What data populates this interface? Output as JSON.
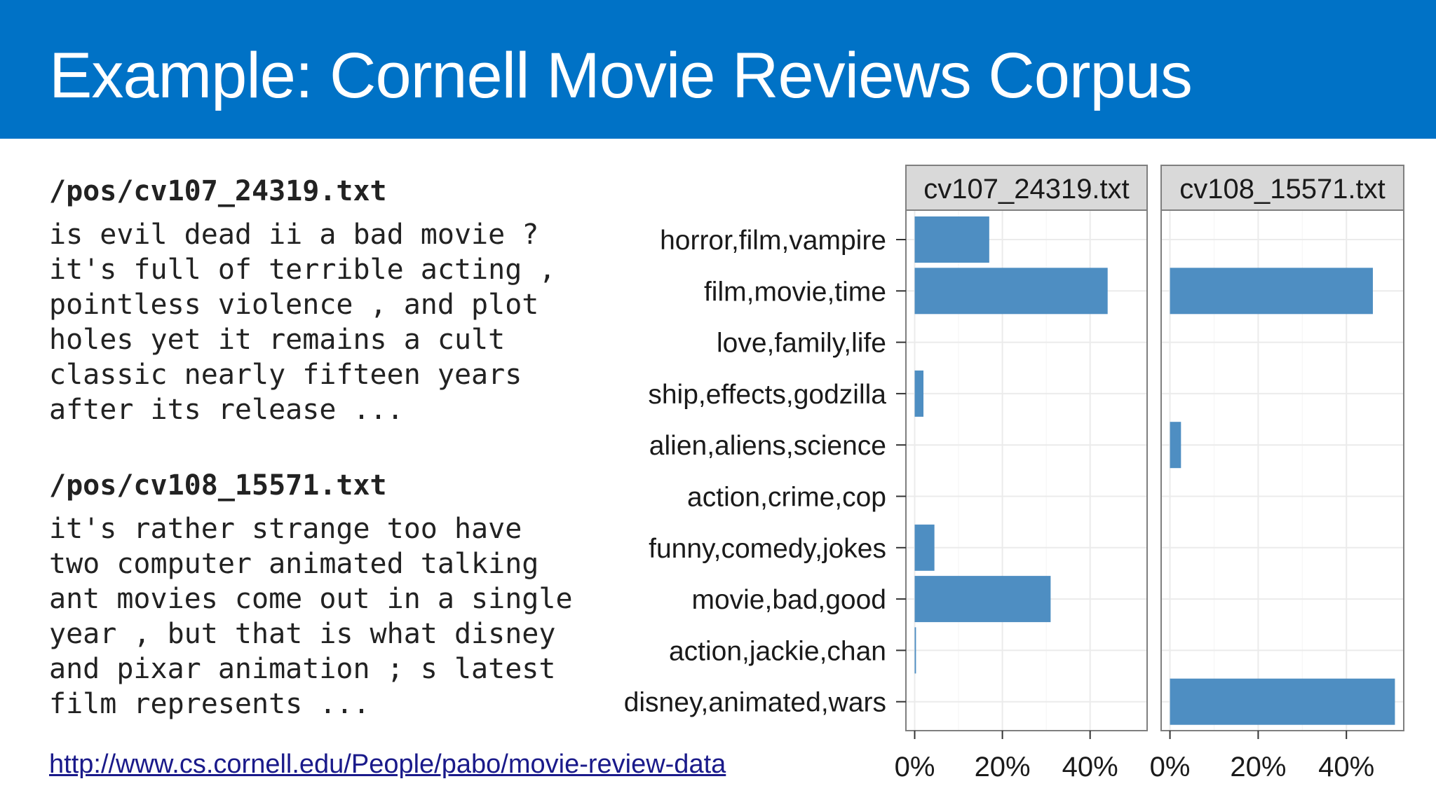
{
  "slide": {
    "title_bold": "Example:",
    "title_rest": " Cornell Movie Reviews Corpus"
  },
  "documents": [
    {
      "filename": "/pos/cv107_24319.txt",
      "lines": [
        "is evil dead ii a bad movie ?",
        "it's full of terrible acting ,",
        "pointless violence , and plot",
        "holes yet it remains a cult",
        "classic nearly fifteen years",
        "after its release ..."
      ]
    },
    {
      "filename": "/pos/cv108_15571.txt",
      "lines": [
        "it's rather strange too have",
        "two computer animated talking",
        "ant movies come out in a single",
        "year , but that is what disney",
        "and pixar animation ; s latest",
        "film represents ..."
      ]
    }
  ],
  "source_url": "http://www.cs.cornell.edu/People/pabo/movie-review-data",
  "colors": {
    "header_blue": "#0072C6",
    "bar_fill": "#4E8EC2",
    "facet_strip": "#D9D9D9",
    "grid": "#EBEBEB"
  },
  "chart_data": {
    "type": "bar",
    "orientation": "horizontal",
    "facet_by": "document",
    "categories": [
      "horror,film,vampire",
      "film,movie,time",
      "love,family,life",
      "ship,effects,godzilla",
      "alien,aliens,science",
      "action,crime,cop",
      "funny,comedy,jokes",
      "movie,bad,good",
      "action,jackie,chan",
      "disney,animated,wars"
    ],
    "series": [
      {
        "name": "cv107_24319.txt",
        "values": [
          17,
          44,
          0,
          2,
          0,
          0,
          4.5,
          31,
          0.3,
          0
        ]
      },
      {
        "name": "cv108_15571.txt",
        "values": [
          0,
          46,
          0,
          0,
          2.5,
          0,
          0,
          0,
          0,
          51
        ]
      }
    ],
    "xlim": [
      -2,
      53
    ],
    "x_ticks": [
      0,
      20,
      40
    ],
    "x_tick_labels": [
      "0%",
      "20%",
      "40%"
    ],
    "xlabel": "",
    "ylabel": "",
    "grid": true
  }
}
